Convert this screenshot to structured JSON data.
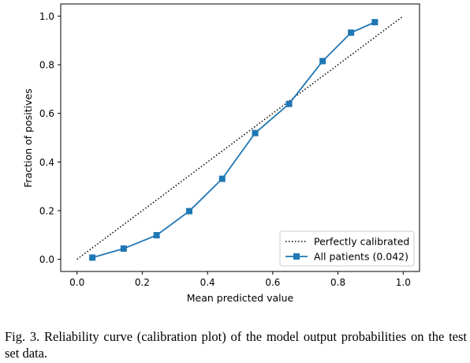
{
  "chart_data": {
    "type": "line",
    "xlabel": "Mean predicted value",
    "ylabel": "Fraction of positives",
    "xlim": [
      -0.05,
      1.05
    ],
    "ylim": [
      -0.05,
      1.05
    ],
    "xticks": [
      "0.0",
      "0.2",
      "0.4",
      "0.6",
      "0.8",
      "1.0"
    ],
    "yticks": [
      "0.0",
      "0.2",
      "0.4",
      "0.6",
      "0.8",
      "1.0"
    ],
    "grid": false,
    "legend_position": "lower-right",
    "series": [
      {
        "name": "Perfectly calibrated",
        "style": "dotted",
        "color": "#000000",
        "x": [
          0,
          1
        ],
        "y": [
          0,
          1
        ]
      },
      {
        "name": "All patients (0.042)",
        "style": "solid-square-markers",
        "color": "#1f77b4",
        "x": [
          0.047,
          0.143,
          0.244,
          0.344,
          0.445,
          0.546,
          0.65,
          0.753,
          0.84,
          0.913
        ],
        "y": [
          0.007,
          0.044,
          0.099,
          0.198,
          0.331,
          0.519,
          0.639,
          0.815,
          0.932,
          0.975
        ]
      }
    ]
  },
  "caption": {
    "text": "Fig. 3.  Reliability curve (calibration plot) of the model output probabilities on the test set data."
  }
}
